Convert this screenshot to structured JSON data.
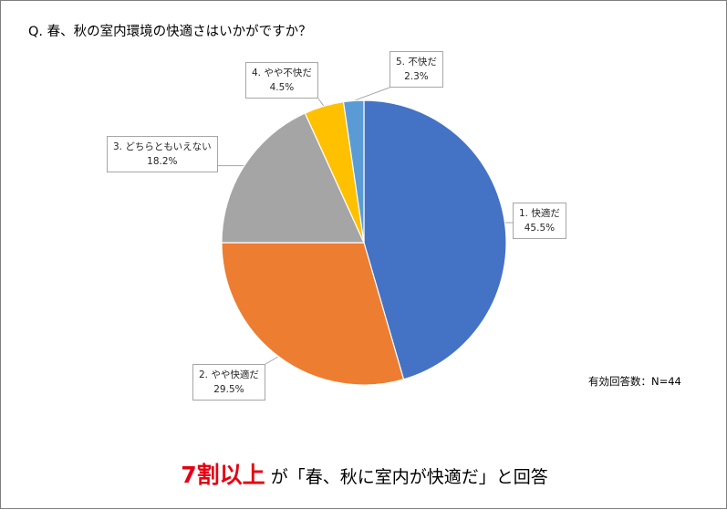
{
  "question": "Q. 春、秋の室内環境の快適さはいかがですか？",
  "respondents": "有効回答数：N=44",
  "summary": {
    "emphasis": "7割以上",
    "rest": " が「春、秋に室内が快適だ」と回答"
  },
  "chart_data": {
    "type": "pie",
    "title": "Q. 春、秋の室内環境の快適さはいかがですか？",
    "categories": [
      "1. 快適だ",
      "2. やや快適だ",
      "3. どちらともいえない",
      "4. やや不快だ",
      "5. 不快だ"
    ],
    "values": [
      45.5,
      29.5,
      18.2,
      4.5,
      2.3
    ],
    "value_labels": [
      "45.5%",
      "29.5%",
      "18.2%",
      "4.5%",
      "2.3%"
    ],
    "colors": [
      "#4472c4",
      "#ed7d31",
      "#a5a5a5",
      "#ffc000",
      "#5b9bd5"
    ],
    "start": "12 o'clock, clockwise",
    "legend": "none (callout data labels)"
  }
}
